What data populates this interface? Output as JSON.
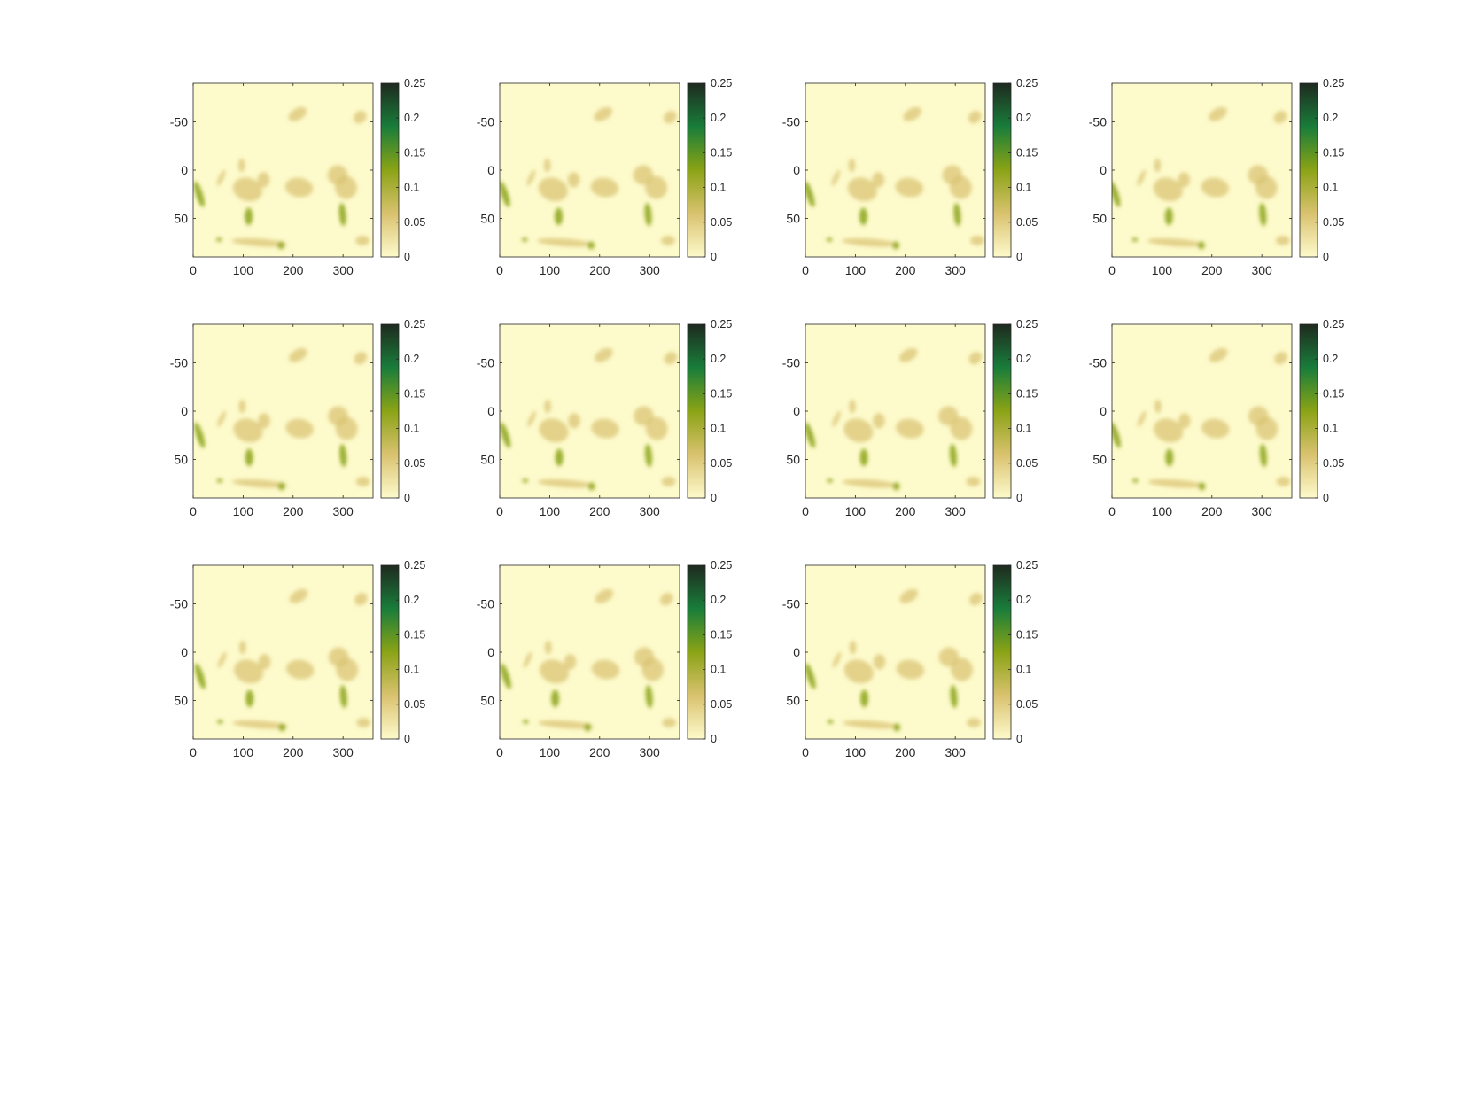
{
  "figure": {
    "colormap": [
      "#fdfacb",
      "#d9c26f",
      "#8ba316",
      "#197d3a",
      "#1f2a1f"
    ],
    "axis_color": "#262626"
  },
  "chart_data": [
    {
      "type": "heatmap",
      "panel": 1,
      "xlim": [
        0,
        360
      ],
      "ylim": [
        -90,
        90
      ],
      "y_reversed": true,
      "xticks": [
        "0",
        "100",
        "200",
        "300"
      ],
      "yticks": [
        "-50",
        "0",
        "50"
      ],
      "clim": [
        0,
        0.25
      ],
      "colorbar_ticks": [
        "0",
        "0.05",
        "0.1",
        "0.15",
        "0.2",
        "0.25"
      ]
    },
    {
      "type": "heatmap",
      "panel": 2,
      "xlim": [
        0,
        360
      ],
      "ylim": [
        -90,
        90
      ],
      "y_reversed": true,
      "xticks": [
        "0",
        "100",
        "200",
        "300"
      ],
      "yticks": [
        "-50",
        "0",
        "50"
      ],
      "clim": [
        0,
        0.25
      ],
      "colorbar_ticks": [
        "0",
        "0.05",
        "0.1",
        "0.15",
        "0.2",
        "0.25"
      ]
    },
    {
      "type": "heatmap",
      "panel": 3,
      "xlim": [
        0,
        360
      ],
      "ylim": [
        -90,
        90
      ],
      "y_reversed": true,
      "xticks": [
        "0",
        "100",
        "200",
        "300"
      ],
      "yticks": [
        "-50",
        "0",
        "50"
      ],
      "clim": [
        0,
        0.25
      ],
      "colorbar_ticks": [
        "0",
        "0.05",
        "0.1",
        "0.15",
        "0.2",
        "0.25"
      ]
    },
    {
      "type": "heatmap",
      "panel": 4,
      "xlim": [
        0,
        360
      ],
      "ylim": [
        -90,
        90
      ],
      "y_reversed": true,
      "xticks": [
        "0",
        "100",
        "200",
        "300"
      ],
      "yticks": [
        "-50",
        "0",
        "50"
      ],
      "clim": [
        0,
        0.25
      ],
      "colorbar_ticks": [
        "0",
        "0.05",
        "0.1",
        "0.15",
        "0.2",
        "0.25"
      ]
    },
    {
      "type": "heatmap",
      "panel": 5,
      "xlim": [
        0,
        360
      ],
      "ylim": [
        -90,
        90
      ],
      "y_reversed": true,
      "xticks": [
        "0",
        "100",
        "200",
        "300"
      ],
      "yticks": [
        "-50",
        "0",
        "50"
      ],
      "clim": [
        0,
        0.25
      ],
      "colorbar_ticks": [
        "0",
        "0.05",
        "0.1",
        "0.15",
        "0.2",
        "0.25"
      ]
    },
    {
      "type": "heatmap",
      "panel": 6,
      "xlim": [
        0,
        360
      ],
      "ylim": [
        -90,
        90
      ],
      "y_reversed": true,
      "xticks": [
        "0",
        "100",
        "200",
        "300"
      ],
      "yticks": [
        "-50",
        "0",
        "50"
      ],
      "clim": [
        0,
        0.25
      ],
      "colorbar_ticks": [
        "0",
        "0.05",
        "0.1",
        "0.15",
        "0.2",
        "0.25"
      ]
    },
    {
      "type": "heatmap",
      "panel": 7,
      "xlim": [
        0,
        360
      ],
      "ylim": [
        -90,
        90
      ],
      "y_reversed": true,
      "xticks": [
        "0",
        "100",
        "200",
        "300"
      ],
      "yticks": [
        "-50",
        "0",
        "50"
      ],
      "clim": [
        0,
        0.25
      ],
      "colorbar_ticks": [
        "0",
        "0.05",
        "0.1",
        "0.15",
        "0.2",
        "0.25"
      ]
    },
    {
      "type": "heatmap",
      "panel": 8,
      "xlim": [
        0,
        360
      ],
      "ylim": [
        -90,
        90
      ],
      "y_reversed": true,
      "xticks": [
        "0",
        "100",
        "200",
        "300"
      ],
      "yticks": [
        "-50",
        "0",
        "50"
      ],
      "clim": [
        0,
        0.25
      ],
      "colorbar_ticks": [
        "0",
        "0.05",
        "0.1",
        "0.15",
        "0.2",
        "0.25"
      ]
    },
    {
      "type": "heatmap",
      "panel": 9,
      "xlim": [
        0,
        360
      ],
      "ylim": [
        -90,
        90
      ],
      "y_reversed": true,
      "xticks": [
        "0",
        "100",
        "200",
        "300"
      ],
      "yticks": [
        "-50",
        "0",
        "50"
      ],
      "clim": [
        0,
        0.25
      ],
      "colorbar_ticks": [
        "0",
        "0.05",
        "0.1",
        "0.15",
        "0.2",
        "0.25"
      ]
    },
    {
      "type": "heatmap",
      "panel": 10,
      "xlim": [
        0,
        360
      ],
      "ylim": [
        -90,
        90
      ],
      "y_reversed": true,
      "xticks": [
        "0",
        "100",
        "200",
        "300"
      ],
      "yticks": [
        "-50",
        "0",
        "50"
      ],
      "clim": [
        0,
        0.25
      ],
      "colorbar_ticks": [
        "0",
        "0.05",
        "0.1",
        "0.15",
        "0.2",
        "0.25"
      ]
    },
    {
      "type": "heatmap",
      "panel": 11,
      "xlim": [
        0,
        360
      ],
      "ylim": [
        -90,
        90
      ],
      "y_reversed": true,
      "xticks": [
        "0",
        "100",
        "200",
        "300"
      ],
      "yticks": [
        "-50",
        "0",
        "50"
      ],
      "clim": [
        0,
        0.25
      ],
      "colorbar_ticks": [
        "0",
        "0.05",
        "0.1",
        "0.15",
        "0.2",
        "0.25"
      ]
    }
  ]
}
